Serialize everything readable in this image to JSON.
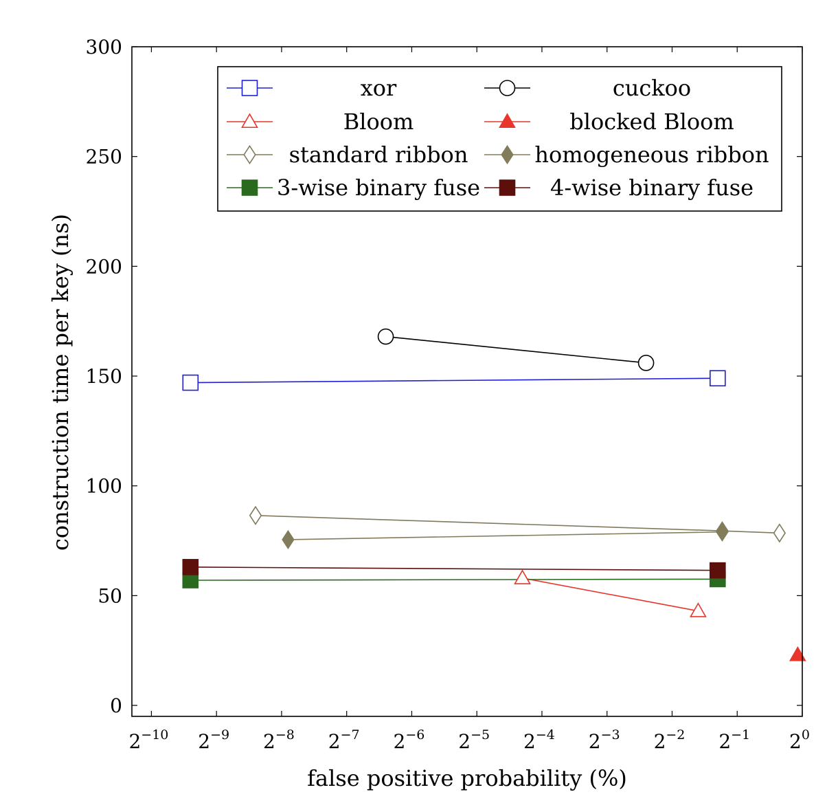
{
  "chart_data": {
    "type": "line",
    "xscale": "log2",
    "xlabel": "false positive probability (%)",
    "ylabel": "construction time per key (ns)",
    "xlim_exponent": [
      -10.3,
      0
    ],
    "ylim": [
      -5,
      300
    ],
    "x_ticks": [
      {
        "base": "2",
        "exp": "−10",
        "value": -10
      },
      {
        "base": "2",
        "exp": "−9",
        "value": -9
      },
      {
        "base": "2",
        "exp": "−8",
        "value": -8
      },
      {
        "base": "2",
        "exp": "−7",
        "value": -7
      },
      {
        "base": "2",
        "exp": "−6",
        "value": -6
      },
      {
        "base": "2",
        "exp": "−5",
        "value": -5
      },
      {
        "base": "2",
        "exp": "−4",
        "value": -4
      },
      {
        "base": "2",
        "exp": "−3",
        "value": -3
      },
      {
        "base": "2",
        "exp": "−2",
        "value": -2
      },
      {
        "base": "2",
        "exp": "−1",
        "value": -1
      },
      {
        "base": "2",
        "exp": "0",
        "value": 0
      }
    ],
    "y_ticks": [
      {
        "label": "0",
        "value": 0
      },
      {
        "label": "50",
        "value": 50
      },
      {
        "label": "100",
        "value": 100
      },
      {
        "label": "150",
        "value": 150
      },
      {
        "label": "200",
        "value": 200
      },
      {
        "label": "250",
        "value": 250
      },
      {
        "label": "300",
        "value": 300
      }
    ],
    "legend_position": "top-center",
    "grid": false,
    "series": [
      {
        "name": "xor",
        "color": "#1f1fd6",
        "marker": "square",
        "filled": false,
        "points": [
          [
            -9.4,
            147
          ],
          [
            -1.3,
            149
          ]
        ]
      },
      {
        "name": "cuckoo",
        "color": "#000000",
        "marker": "circle",
        "filled": false,
        "points": [
          [
            -6.4,
            168
          ],
          [
            -2.4,
            156
          ]
        ]
      },
      {
        "name": "Bloom",
        "color": "#e8362b",
        "marker": "triangle",
        "filled": false,
        "points": [
          [
            -4.3,
            58
          ],
          [
            -1.6,
            43
          ]
        ]
      },
      {
        "name": "blocked Bloom",
        "color": "#e8362b",
        "marker": "triangle",
        "filled": true,
        "points": [
          [
            -0.07,
            23
          ]
        ]
      },
      {
        "name": "standard ribbon",
        "color": "#7f7a5c",
        "marker": "diamond",
        "filled": false,
        "points": [
          [
            -8.4,
            86.5
          ],
          [
            -1.23,
            79.5
          ],
          [
            -0.35,
            78.5
          ]
        ]
      },
      {
        "name": "homogeneous ribbon",
        "color": "#827c5a",
        "marker": "diamond",
        "filled": true,
        "points": [
          [
            -7.9,
            75.5
          ],
          [
            -1.23,
            79
          ]
        ]
      },
      {
        "name": "3-wise binary fuse",
        "color": "#2a6a1f",
        "marker": "square",
        "filled": true,
        "points": [
          [
            -9.4,
            57
          ],
          [
            -1.3,
            57.5
          ]
        ]
      },
      {
        "name": "4-wise binary fuse",
        "color": "#5c0f0b",
        "marker": "square",
        "filled": true,
        "points": [
          [
            -9.4,
            63
          ],
          [
            -1.3,
            61.5
          ]
        ]
      }
    ]
  }
}
